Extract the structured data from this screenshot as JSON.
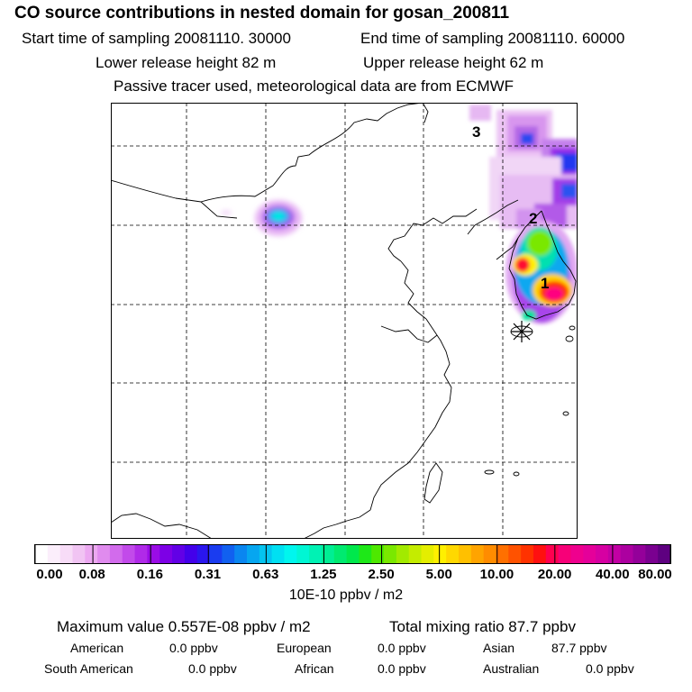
{
  "header": {
    "title": "CO  source contributions in nested domain for gosan_200811",
    "start_time": "Start time of sampling 20081110. 30000",
    "end_time": "End time of sampling 20081110. 60000",
    "lower_height": "Lower release height   82 m",
    "upper_height": "Upper release height   62 m",
    "subtitle": "Passive tracer used, meteorological data are from ECMWF"
  },
  "map": {
    "region_labels": [
      "1",
      "2",
      "3"
    ]
  },
  "legend": {
    "ticks": [
      "0.00",
      "0.08",
      "0.16",
      "0.31",
      "0.63",
      "1.25",
      "2.50",
      "5.00",
      "10.00",
      "20.00",
      "40.00",
      "80.00"
    ],
    "unit": "10E-10 ppbv / m2",
    "colors": [
      "#ffffff",
      "#fbeefb",
      "#f7dcf7",
      "#f1c4f3",
      "#eca8f1",
      "#e08bee",
      "#d26bec",
      "#c24aea",
      "#b02ae8",
      "#9a0ce6",
      "#7d00e6",
      "#6200e6",
      "#4300ea",
      "#2a16ee",
      "#1a3cf0",
      "#1160f0",
      "#0a86f0",
      "#06a6f0",
      "#04c4f0",
      "#00e0f2",
      "#00f6ee",
      "#00f6d4",
      "#00f2b4",
      "#00ee94",
      "#00ea70",
      "#00e84c",
      "#1ee818",
      "#4ee800",
      "#7ae800",
      "#a2ea00",
      "#c4ec00",
      "#e4ee00",
      "#fff000",
      "#ffd800",
      "#ffc000",
      "#ffa400",
      "#ff8c00",
      "#ff7000",
      "#ff5200",
      "#ff3200",
      "#ff1010",
      "#ff0050",
      "#f70078",
      "#ef008e",
      "#e5009a",
      "#d600a2",
      "#c200a4",
      "#ac00a0",
      "#94009a",
      "#7a0090",
      "#5e0080"
    ]
  },
  "summary": {
    "maximum": "Maximum value  0.557E-08 ppbv / m2",
    "total": "Total mixing ratio       87.7 ppbv",
    "regions": [
      {
        "name": "American",
        "value": "0.0 ppbv"
      },
      {
        "name": "European",
        "value": "0.0 ppbv"
      },
      {
        "name": "Asian",
        "value": "87.7 ppbv"
      },
      {
        "name": "South American",
        "value": "0.0 ppbv"
      },
      {
        "name": "African",
        "value": "0.0 ppbv"
      },
      {
        "name": "Australian",
        "value": "0.0 ppbv"
      }
    ]
  }
}
